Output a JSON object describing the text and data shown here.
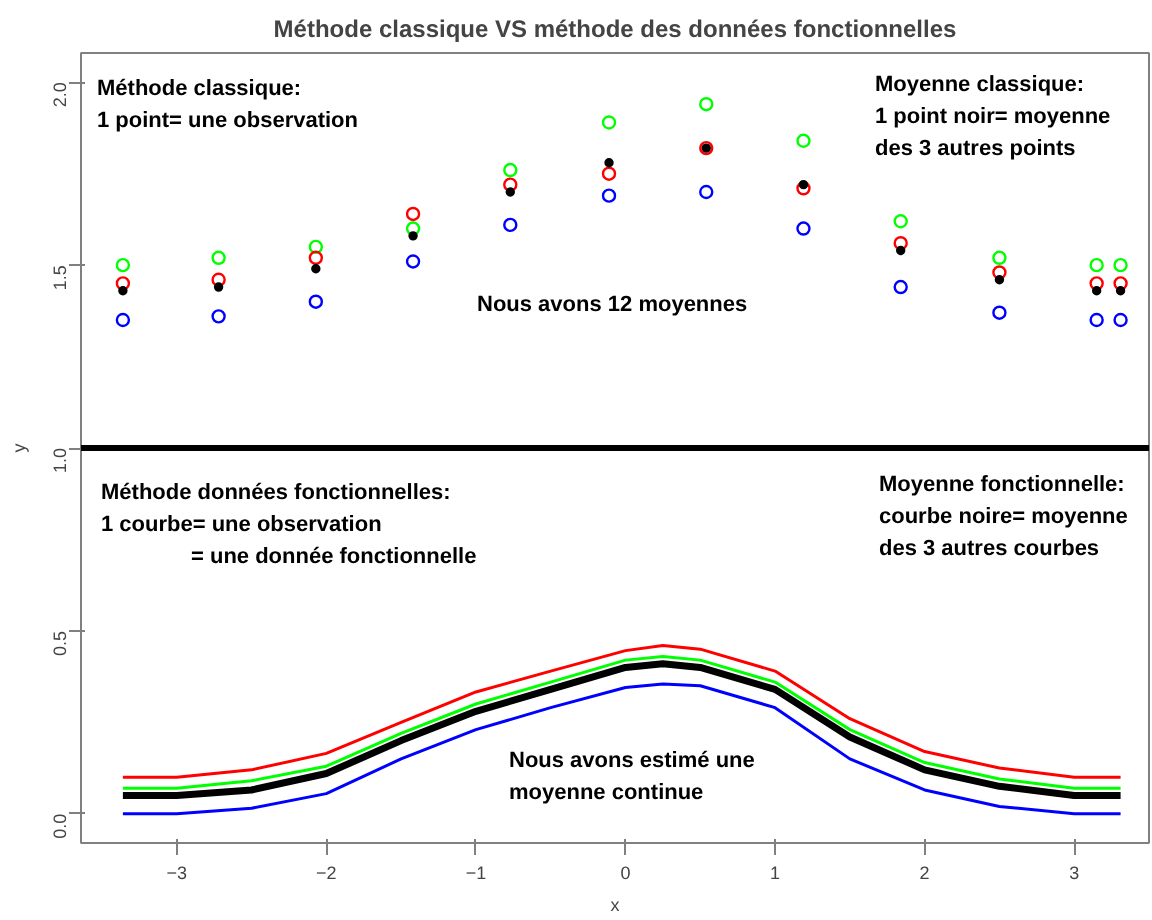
{
  "chart_data": {
    "type": "scatter",
    "title": "Méthode classique VS méthode des données fonctionnelles",
    "xlabel": "x",
    "ylabel": "y",
    "xlim": [
      -3.64,
      3.5
    ],
    "ylim": [
      -0.08,
      2.08
    ],
    "xticks": [
      -3,
      -2,
      -1,
      0,
      1,
      2,
      3
    ],
    "yticks": [
      {
        "value": 0,
        "label": "0.0"
      },
      0.5,
      {
        "value": 1,
        "label": "1.0"
      },
      1.5,
      {
        "value": 2,
        "label": "2.0"
      }
    ],
    "grid": false,
    "x": [
      -3.36,
      -2.72,
      -2.07,
      -1.42,
      -0.77,
      -0.11,
      0.54,
      1.19,
      1.84,
      2.5,
      3.15,
      3.31
    ],
    "series": [
      {
        "marker": "circle",
        "color": "#00ff00",
        "values": [
          1.5,
          1.52,
          1.55,
          1.6,
          1.76,
          1.89,
          1.94,
          1.84,
          1.62,
          1.52,
          1.5,
          1.5
        ]
      },
      {
        "marker": "circle",
        "color": "#ff0000",
        "values": [
          1.45,
          1.46,
          1.52,
          1.64,
          1.72,
          1.75,
          1.82,
          1.71,
          1.56,
          1.48,
          1.45,
          1.45
        ]
      },
      {
        "marker": "circle",
        "color": "#0000ff",
        "values": [
          1.35,
          1.36,
          1.4,
          1.51,
          1.61,
          1.69,
          1.7,
          1.6,
          1.44,
          1.37,
          1.35,
          1.35
        ]
      },
      {
        "marker": "circle",
        "color": "#000000",
        "values": [
          1.43,
          1.44,
          1.49,
          1.58,
          1.7,
          1.78,
          1.82,
          1.72,
          1.54,
          1.46,
          1.43,
          1.43
        ]
      },
      {
        "type": "line",
        "color": "#ff0000",
        "x": [
          -3.36,
          -3,
          -2.5,
          -2,
          -1.5,
          -1,
          -0.5,
          0,
          0.25,
          0.5,
          1,
          1.5,
          2,
          2.5,
          3,
          3.31
        ],
        "values": [
          0.1,
          0.1,
          0.12,
          0.165,
          0.25,
          0.333,
          0.39,
          0.446,
          0.46,
          0.45,
          0.39,
          0.26,
          0.17,
          0.125,
          0.1,
          0.1
        ]
      },
      {
        "type": "line",
        "color": "#00ff00",
        "x": [
          -3.36,
          -3,
          -2.5,
          -2,
          -1.5,
          -1,
          -0.5,
          0,
          0.25,
          0.5,
          1,
          1.5,
          2,
          2.5,
          3,
          3.31
        ],
        "values": [
          0.07,
          0.07,
          0.09,
          0.13,
          0.22,
          0.3,
          0.36,
          0.42,
          0.43,
          0.42,
          0.36,
          0.23,
          0.14,
          0.095,
          0.07,
          0.07
        ]
      },
      {
        "type": "line",
        "color": "#0000ff",
        "x": [
          -3.36,
          -3,
          -2.5,
          -2,
          -1.5,
          -1,
          -0.5,
          0,
          0.25,
          0.5,
          1,
          1.5,
          2,
          2.5,
          3,
          3.31
        ],
        "values": [
          0.0,
          0.0,
          0.015,
          0.055,
          0.15,
          0.23,
          0.29,
          0.345,
          0.355,
          0.35,
          0.29,
          0.15,
          0.065,
          0.02,
          0.0,
          0.0
        ]
      },
      {
        "type": "line",
        "color": "#000000",
        "x": [
          -3.36,
          -3,
          -2.5,
          -2,
          -1.5,
          -1,
          -0.5,
          0,
          0.25,
          0.5,
          1,
          1.5,
          2,
          2.5,
          3,
          3.31
        ],
        "values": [
          0.05,
          0.05,
          0.065,
          0.11,
          0.2,
          0.28,
          0.34,
          0.4,
          0.41,
          0.4,
          0.34,
          0.21,
          0.12,
          0.075,
          0.05,
          0.05
        ]
      }
    ],
    "ref_lines": [
      {
        "axis": "y",
        "value": 1,
        "color": "#000000"
      }
    ],
    "annotations": [
      "Méthode classique:",
      "1 point= une observation",
      "Moyenne classique:",
      "1 point noir= moyenne",
      "des 3 autres points",
      "Nous avons 12 moyennes",
      "Méthode données fonctionnelles:",
      "1 courbe= une observation",
      "= une donnée fonctionnelle",
      "Moyenne fonctionnelle:",
      "courbe noire= moyenne",
      "des 3 autres courbes",
      "Nous avons estimé une",
      "moyenne continue"
    ]
  }
}
